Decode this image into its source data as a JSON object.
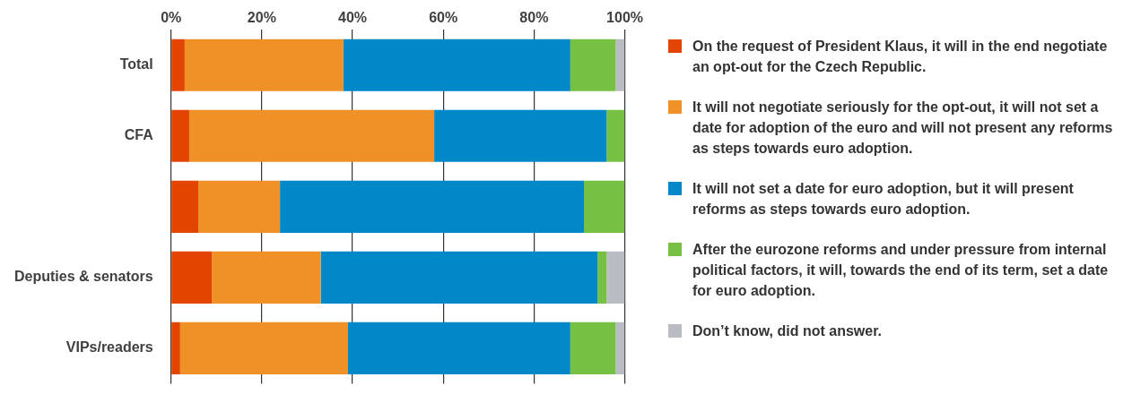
{
  "chart_data": {
    "type": "bar",
    "orientation": "horizontal",
    "stacked": true,
    "categories": [
      "Total",
      "CFA",
      null,
      "Deputies & senators",
      "VIPs/readers"
    ],
    "series": [
      {
        "name": "On the request of President Klaus, it will in the end negotiate an opt-out for the Czech Republic.",
        "color": "#e34400",
        "values": [
          3,
          4,
          6,
          9,
          2
        ]
      },
      {
        "name": "It will not negotiate seriously for the opt-out, it will not set a date for adoption of the euro and will not present any reforms as steps towards euro adoption.",
        "color": "#f09127",
        "values": [
          35,
          54,
          18,
          24,
          37
        ]
      },
      {
        "name": "It will not set a date for euro adoption, but it will present reforms as steps towards euro adoption.",
        "color": "#0088c8",
        "values": [
          50,
          38,
          67,
          61,
          49
        ]
      },
      {
        "name": "After the eurozone reforms and under pressure from internal political factors, it will, towards the end of its term, set a date for euro adoption.",
        "color": "#76c044",
        "values": [
          10,
          4,
          9,
          2,
          10
        ]
      },
      {
        "name": "Don’t know, did not answer.",
        "color": "#b9bcc2",
        "values": [
          2,
          0,
          0,
          4,
          2
        ]
      }
    ],
    "xlim": [
      0,
      100
    ],
    "xticks": [
      {
        "value": 0,
        "label": "0%"
      },
      {
        "value": 20,
        "label": "20%"
      },
      {
        "value": 40,
        "label": "40%"
      },
      {
        "value": 60,
        "label": "60%"
      },
      {
        "value": 80,
        "label": "80%"
      },
      {
        "value": 100,
        "label": "100%"
      }
    ],
    "grid": "x",
    "legend": "right"
  }
}
